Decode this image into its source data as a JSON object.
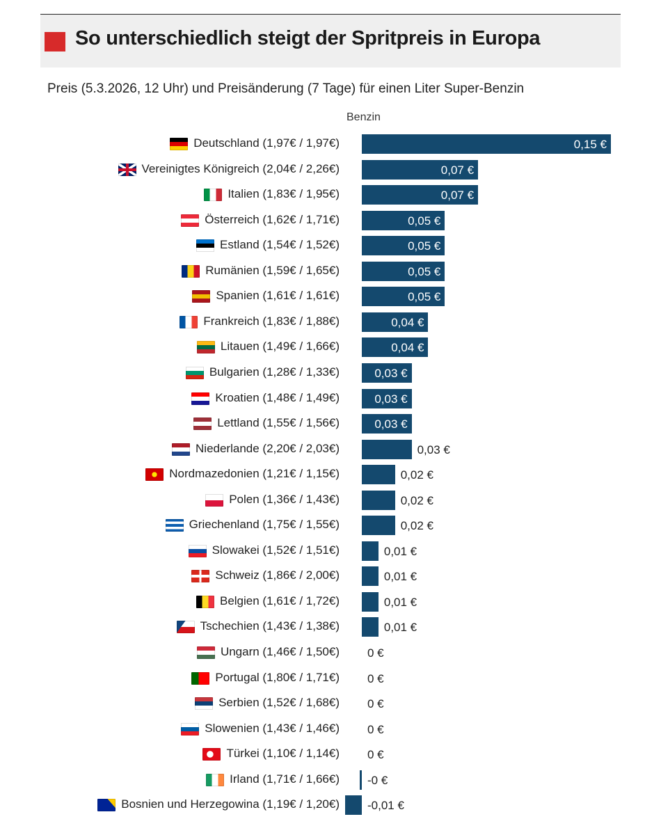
{
  "header": {
    "title": "So unterschiedlich steigt der Spritpreis in Europa",
    "subtitle": "Preis (5.3.2026, 12 Uhr) und Preisänderung (7 Tage) für einen Liter Super-Benzin",
    "column_label": "Benzin"
  },
  "colors": {
    "bar": "#14496e",
    "accent": "#d72a2a",
    "header_bg": "#efefef"
  },
  "chart_data": {
    "type": "bar",
    "orientation": "horizontal",
    "title": "So unterschiedlich steigt der Spritpreis in Europa",
    "subtitle": "Preis (5.3.2026, 12 Uhr) und Preisänderung (7 Tage) für einen Liter Super-Benzin",
    "series_name": "Benzin",
    "unit": "€",
    "xlim": [
      -0.02,
      0.15
    ],
    "rows": [
      {
        "label": "Deutschland (1,97€ / 1,97€)",
        "value": 0.15,
        "value_label": "0,15 €",
        "flag": [
          "#000000",
          "#dd0000",
          "#ffce00"
        ],
        "flag_dir": "h"
      },
      {
        "label": "Vereinigtes Königreich (2,04€ / 2,26€)",
        "value": 0.07,
        "value_label": "0,07 €",
        "flag": [
          "#012169",
          "#c8102e",
          "#ffffff"
        ],
        "flag_dir": "uk"
      },
      {
        "label": "Italien (1,83€ / 1,95€)",
        "value": 0.07,
        "value_label": "0,07 €",
        "flag": [
          "#009246",
          "#ffffff",
          "#ce2b37"
        ],
        "flag_dir": "v"
      },
      {
        "label": "Österreich (1,62€ / 1,71€)",
        "value": 0.05,
        "value_label": "0,05 €",
        "flag": [
          "#ed2939",
          "#ffffff",
          "#ed2939"
        ],
        "flag_dir": "h"
      },
      {
        "label": "Estland (1,54€ / 1,52€)",
        "value": 0.05,
        "value_label": "0,05 €",
        "flag": [
          "#0072ce",
          "#000000",
          "#ffffff"
        ],
        "flag_dir": "h"
      },
      {
        "label": "Rumänien (1,59€ / 1,65€)",
        "value": 0.05,
        "value_label": "0,05 €",
        "flag": [
          "#002b7f",
          "#fcd116",
          "#ce1126"
        ],
        "flag_dir": "v"
      },
      {
        "label": "Spanien (1,61€ / 1,61€)",
        "value": 0.05,
        "value_label": "0,05 €",
        "flag": [
          "#aa151b",
          "#f1bf00",
          "#aa151b"
        ],
        "flag_dir": "h"
      },
      {
        "label": "Frankreich (1,83€ / 1,88€)",
        "value": 0.04,
        "value_label": "0,04 €",
        "flag": [
          "#0055a4",
          "#ffffff",
          "#ef4135"
        ],
        "flag_dir": "v"
      },
      {
        "label": "Litauen (1,49€ / 1,66€)",
        "value": 0.04,
        "value_label": "0,04 €",
        "flag": [
          "#fdb913",
          "#006a44",
          "#c1272d"
        ],
        "flag_dir": "h"
      },
      {
        "label": "Bulgarien (1,28€ / 1,33€)",
        "value": 0.03,
        "value_label": "0,03 €",
        "flag": [
          "#ffffff",
          "#00966e",
          "#d62612"
        ],
        "flag_dir": "h"
      },
      {
        "label": "Kroatien (1,48€ / 1,49€)",
        "value": 0.03,
        "value_label": "0,03 €",
        "flag": [
          "#ff0000",
          "#ffffff",
          "#171796"
        ],
        "flag_dir": "h"
      },
      {
        "label": "Lettland (1,55€ / 1,56€)",
        "value": 0.03,
        "value_label": "0,03 €",
        "flag": [
          "#9e3039",
          "#ffffff",
          "#9e3039"
        ],
        "flag_dir": "h"
      },
      {
        "label": "Niederlande (2,20€ / 2,03€)",
        "value": 0.03,
        "value_label": "0,03 €",
        "flag": [
          "#ae1c28",
          "#ffffff",
          "#21468b"
        ],
        "flag_dir": "h"
      },
      {
        "label": "Nordmazedonien (1,21€ / 1,15€)",
        "value": 0.02,
        "value_label": "0,02 €",
        "flag": [
          "#d20000",
          "#ffe600",
          "#d20000"
        ],
        "flag_dir": "mk"
      },
      {
        "label": "Polen (1,36€ / 1,43€)",
        "value": 0.02,
        "value_label": "0,02 €",
        "flag": [
          "#ffffff",
          "#dc143c"
        ],
        "flag_dir": "h"
      },
      {
        "label": "Griechenland (1,75€ / 1,55€)",
        "value": 0.02,
        "value_label": "0,02 €",
        "flag": [
          "#0d5eaf",
          "#ffffff",
          "#0d5eaf",
          "#ffffff",
          "#0d5eaf"
        ],
        "flag_dir": "h"
      },
      {
        "label": "Slowakei (1,52€ / 1,51€)",
        "value": 0.01,
        "value_label": "0,01 €",
        "flag": [
          "#ffffff",
          "#0b4ea2",
          "#ee1c25"
        ],
        "flag_dir": "h"
      },
      {
        "label": "Schweiz (1,86€ / 2,00€)",
        "value": 0.01,
        "value_label": "0,01 €",
        "flag": [
          "#da291c",
          "#da291c"
        ],
        "flag_dir": "ch"
      },
      {
        "label": "Belgien (1,61€ / 1,72€)",
        "value": 0.01,
        "value_label": "0,01 €",
        "flag": [
          "#000000",
          "#fdda24",
          "#ef3340"
        ],
        "flag_dir": "v"
      },
      {
        "label": "Tschechien (1,43€ / 1,38€)",
        "value": 0.01,
        "value_label": "0,01 €",
        "flag": [
          "#ffffff",
          "#d7141a",
          "#11457e"
        ],
        "flag_dir": "cz"
      },
      {
        "label": "Ungarn (1,46€ / 1,50€)",
        "value": 0.0,
        "value_label": "0 €",
        "flag": [
          "#ce2939",
          "#ffffff",
          "#477050"
        ],
        "flag_dir": "h"
      },
      {
        "label": "Portugal (1,80€ / 1,71€)",
        "value": 0.0,
        "value_label": "0 €",
        "flag": [
          "#006600",
          "#ff0000"
        ],
        "flag_dir": "pt"
      },
      {
        "label": "Serbien (1,52€ / 1,68€)",
        "value": 0.0,
        "value_label": "0 €",
        "flag": [
          "#c6363c",
          "#0c4076",
          "#ffffff"
        ],
        "flag_dir": "h"
      },
      {
        "label": "Slowenien (1,43€ / 1,46€)",
        "value": 0.0,
        "value_label": "0 €",
        "flag": [
          "#ffffff",
          "#005da4",
          "#ed1c24"
        ],
        "flag_dir": "h"
      },
      {
        "label": "Türkei (1,10€ / 1,14€)",
        "value": 0.0,
        "value_label": "0 €",
        "flag": [
          "#e30a17",
          "#e30a17"
        ],
        "flag_dir": "tr"
      },
      {
        "label": "Irland (1,71€ / 1,66€)",
        "value": -0.001,
        "value_label": "-0 €",
        "flag": [
          "#169b62",
          "#ffffff",
          "#ff883e"
        ],
        "flag_dir": "v"
      },
      {
        "label": "Bosnien und Herzegowina (1,19€ / 1,20€)",
        "value": -0.01,
        "value_label": "-0,01 €",
        "flag": [
          "#002395",
          "#fecb00"
        ],
        "flag_dir": "ba"
      }
    ]
  }
}
